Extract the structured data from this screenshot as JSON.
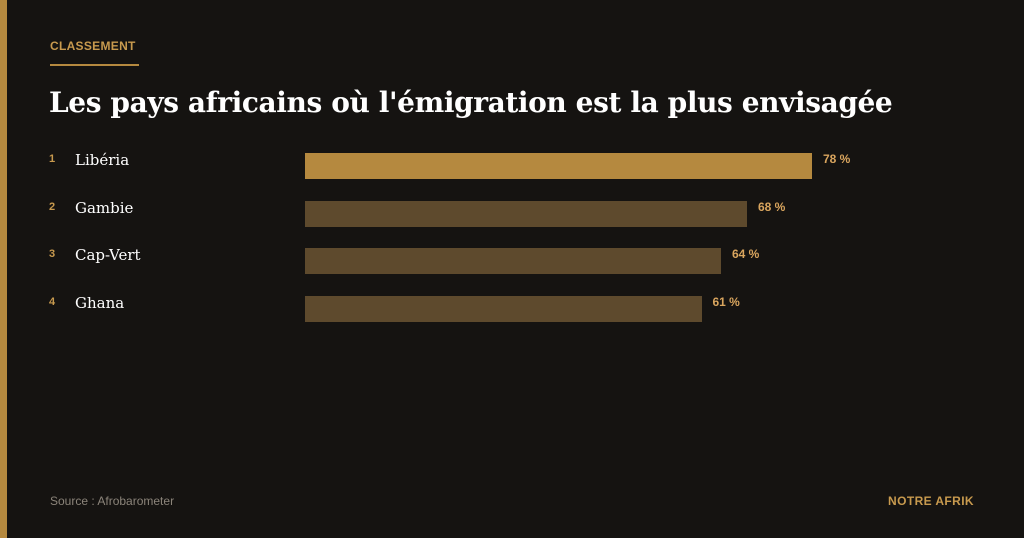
{
  "header": {
    "eyebrow": "CLASSEMENT",
    "title": "Les pays africains où l'émigration est la plus envisagée"
  },
  "colors": {
    "background": "#151311",
    "accent": "#b5893f",
    "bar_highlight": "#b5893f",
    "bar_default": "#5e4a2d",
    "label_gold": "#c89a4e"
  },
  "chart_data": {
    "type": "bar",
    "orientation": "horizontal",
    "title": "Les pays africains où l'émigration est la plus envisagée",
    "ranks": [
      "1",
      "2",
      "3",
      "4"
    ],
    "categories": [
      "Libéria",
      "Gambie",
      "Cap-Vert",
      "Ghana"
    ],
    "values": [
      78,
      68,
      64,
      61
    ],
    "value_labels": [
      "78 %",
      "68 %",
      "64 %",
      "61 %"
    ],
    "unit": "%",
    "highlighted_index": 0,
    "xlim": [
      0,
      100
    ],
    "grid": false
  },
  "footer": {
    "source": "Source : Afrobarometer",
    "brand": "NOTRE AFRIK"
  }
}
